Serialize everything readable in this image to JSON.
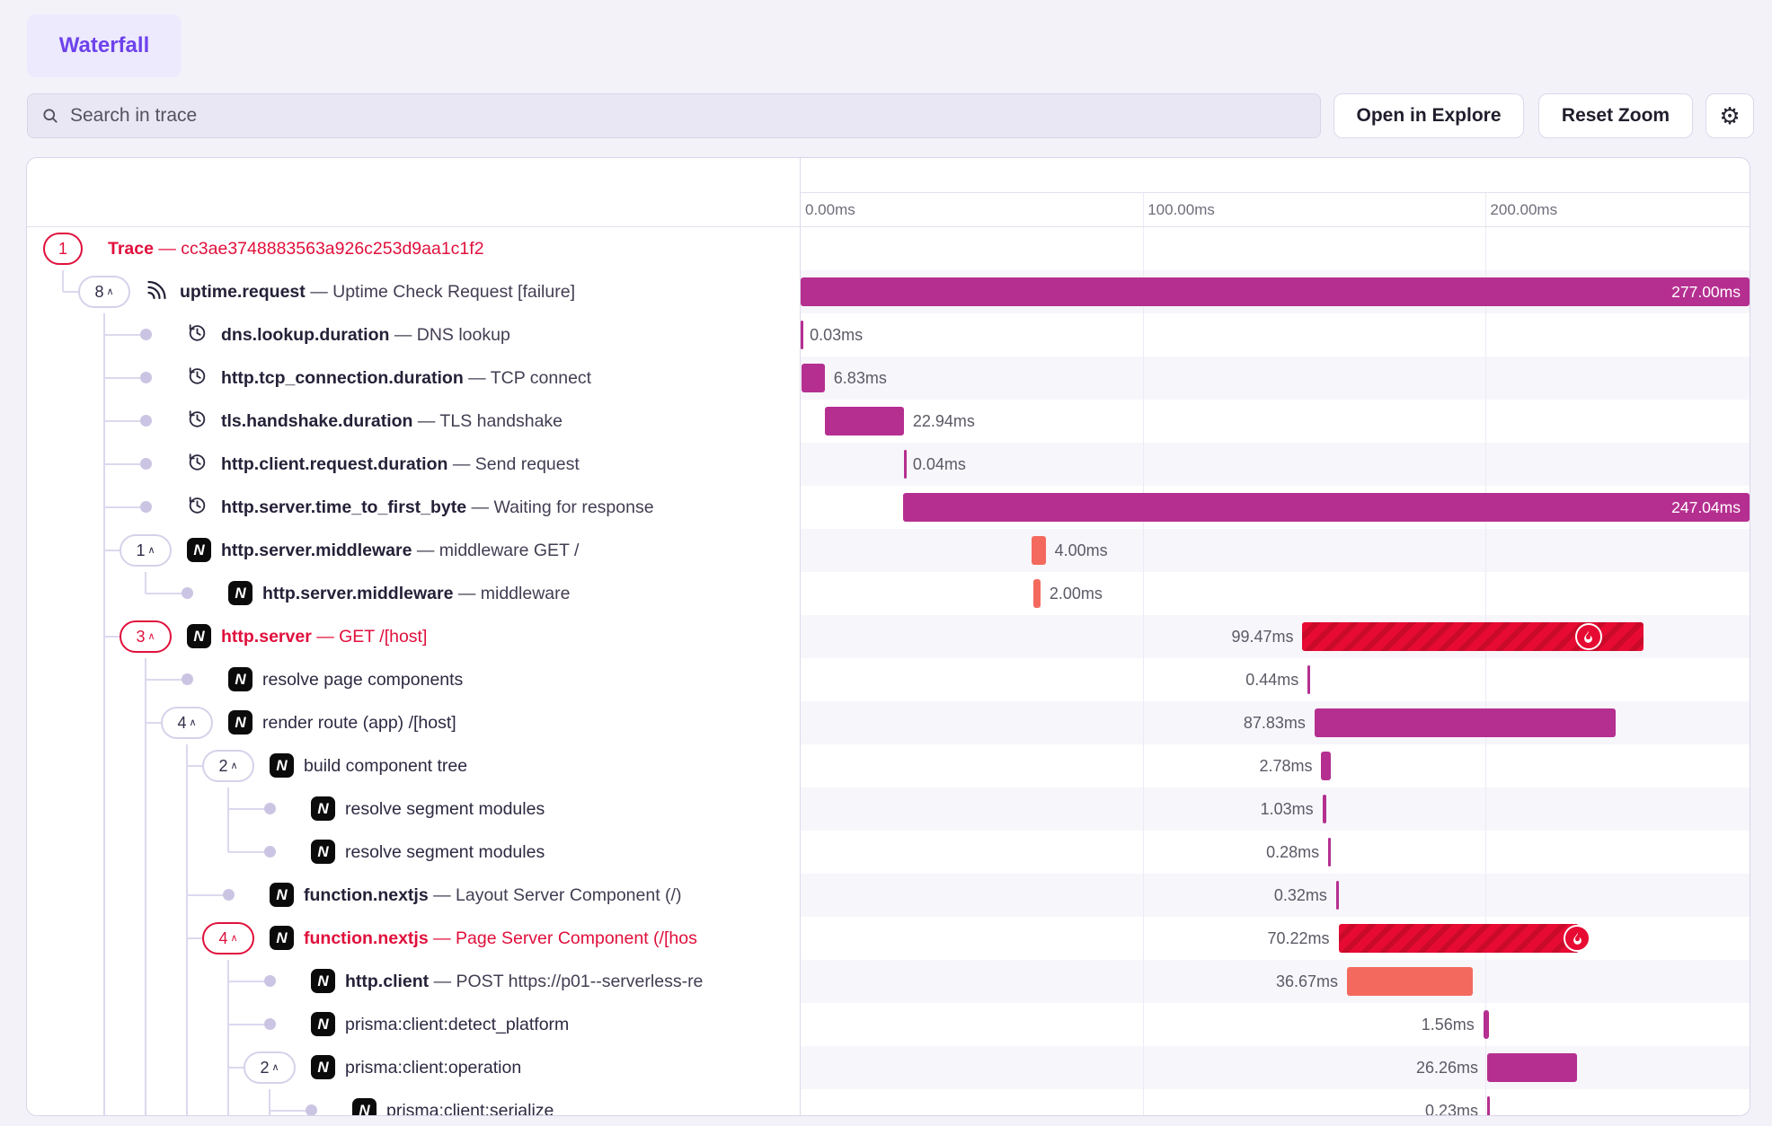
{
  "header": {
    "tab": "Waterfall",
    "search_placeholder": "Search in trace",
    "open_in_explore": "Open in Explore",
    "reset_zoom": "Reset Zoom",
    "settings_glyph": "⚙"
  },
  "timeline": {
    "total_ms": 277,
    "ticks": [
      {
        "label": "0.00ms",
        "ms": 0
      },
      {
        "label": "100.00ms",
        "ms": 100
      },
      {
        "label": "200.00ms",
        "ms": 200
      }
    ]
  },
  "colors": {
    "magenta": "#b52f90",
    "salmon": "#f4695e",
    "error_red": "#e70b33",
    "error_stripe": "#c90a2b",
    "accent_red": "#e0103c",
    "accent_purple": "#6e42ec"
  },
  "rows": [
    {
      "depth": 0,
      "pill": {
        "label": "1",
        "chevron": false,
        "red": true
      },
      "icon": null,
      "title": "Trace",
      "desc": "cc3ae3748883563a926c253d9aa1c1f2",
      "red": true,
      "rails": [],
      "elbow": null,
      "elbow_top": false,
      "bar": null
    },
    {
      "depth": 1,
      "pill": {
        "label": "8",
        "chevron": true,
        "red": false
      },
      "icon": "uptime",
      "title": "uptime.request",
      "desc": "Uptime Check Request [failure]",
      "red": false,
      "rails": [],
      "elbow": 0,
      "elbow_top": true,
      "bar": {
        "start": 0,
        "dur": 277,
        "label": "277.00ms",
        "color": "magenta",
        "label_pos": "inside",
        "flame": null
      }
    },
    {
      "depth": 2,
      "pill": null,
      "icon": "clock",
      "title": "dns.lookup.duration",
      "desc": "DNS lookup",
      "red": false,
      "rails": [
        1
      ],
      "elbow": 1,
      "elbow_top": false,
      "bar": {
        "start": 0,
        "dur": 0.03,
        "label": "0.03ms",
        "color": "magenta",
        "label_pos": "right",
        "flame": null
      }
    },
    {
      "depth": 2,
      "pill": null,
      "icon": "clock",
      "title": "http.tcp_connection.duration",
      "desc": "TCP connect",
      "red": false,
      "rails": [
        1
      ],
      "elbow": 1,
      "elbow_top": false,
      "bar": {
        "start": 0.2,
        "dur": 6.83,
        "label": "6.83ms",
        "color": "magenta",
        "label_pos": "right",
        "flame": null
      }
    },
    {
      "depth": 2,
      "pill": null,
      "icon": "clock",
      "title": "tls.handshake.duration",
      "desc": "TLS handshake",
      "red": false,
      "rails": [
        1
      ],
      "elbow": 1,
      "elbow_top": false,
      "bar": {
        "start": 7.2,
        "dur": 22.94,
        "label": "22.94ms",
        "color": "magenta",
        "label_pos": "right",
        "flame": null
      }
    },
    {
      "depth": 2,
      "pill": null,
      "icon": "clock",
      "title": "http.client.request.duration",
      "desc": "Send request",
      "red": false,
      "rails": [
        1
      ],
      "elbow": 1,
      "elbow_top": false,
      "bar": {
        "start": 30.1,
        "dur": 0.04,
        "label": "0.04ms",
        "color": "magenta",
        "label_pos": "right",
        "flame": null
      }
    },
    {
      "depth": 2,
      "pill": null,
      "icon": "clock",
      "title": "http.server.time_to_first_byte",
      "desc": "Waiting for response",
      "red": false,
      "rails": [
        1
      ],
      "elbow": 1,
      "elbow_top": false,
      "bar": {
        "start": 29.96,
        "dur": 247.04,
        "label": "247.04ms",
        "color": "magenta",
        "label_pos": "inside",
        "flame": null
      }
    },
    {
      "depth": 2,
      "pill": {
        "label": "1",
        "chevron": true,
        "red": false
      },
      "icon": "nextjs",
      "title": "http.server.middleware",
      "desc": "middleware GET /",
      "red": false,
      "rails": [
        1
      ],
      "elbow": 1,
      "elbow_top": false,
      "bar": {
        "start": 67.5,
        "dur": 4,
        "label": "4.00ms",
        "color": "salmon",
        "label_pos": "right",
        "flame": null
      }
    },
    {
      "depth": 3,
      "pill": null,
      "icon": "nextjs",
      "title": "http.server.middleware",
      "desc": "middleware",
      "red": false,
      "rails": [
        1
      ],
      "elbow": 2,
      "elbow_top": true,
      "bar": {
        "start": 68,
        "dur": 2,
        "label": "2.00ms",
        "color": "salmon",
        "label_pos": "right",
        "flame": null
      }
    },
    {
      "depth": 2,
      "pill": {
        "label": "3",
        "chevron": true,
        "red": true
      },
      "icon": "nextjs",
      "title": "http.server",
      "desc": "GET /[host]",
      "red": true,
      "rails": [
        1
      ],
      "elbow": 1,
      "elbow_top": false,
      "bar": {
        "start": 146.5,
        "dur": 99.47,
        "label": "99.47ms",
        "color": "red",
        "label_pos": "left",
        "flame": "mid"
      }
    },
    {
      "depth": 3,
      "pill": null,
      "icon": "nextjs",
      "title": "resolve page components",
      "desc": null,
      "red": false,
      "rails": [
        1,
        2
      ],
      "elbow": 2,
      "elbow_top": false,
      "bar": {
        "start": 148,
        "dur": 0.44,
        "label": "0.44ms",
        "color": "magenta",
        "label_pos": "left",
        "flame": null
      }
    },
    {
      "depth": 3,
      "pill": {
        "label": "4",
        "chevron": true,
        "red": false
      },
      "icon": "nextjs",
      "title": "render route (app) /[host]",
      "desc": null,
      "red": false,
      "rails": [
        1,
        2
      ],
      "elbow": 2,
      "elbow_top": false,
      "bar": {
        "start": 150,
        "dur": 87.83,
        "label": "87.83ms",
        "color": "magenta",
        "label_pos": "left",
        "flame": null
      }
    },
    {
      "depth": 4,
      "pill": {
        "label": "2",
        "chevron": true,
        "red": false
      },
      "icon": "nextjs",
      "title": "build component tree",
      "desc": null,
      "red": false,
      "rails": [
        1,
        2,
        3
      ],
      "elbow": 3,
      "elbow_top": false,
      "bar": {
        "start": 152,
        "dur": 2.78,
        "label": "2.78ms",
        "color": "magenta",
        "label_pos": "left",
        "flame": null
      }
    },
    {
      "depth": 5,
      "pill": null,
      "icon": "nextjs",
      "title": "resolve segment modules",
      "desc": null,
      "red": false,
      "rails": [
        1,
        2,
        3,
        4
      ],
      "elbow": 4,
      "elbow_top": false,
      "bar": {
        "start": 152.3,
        "dur": 1.03,
        "label": "1.03ms",
        "color": "magenta",
        "label_pos": "left",
        "flame": null
      }
    },
    {
      "depth": 5,
      "pill": null,
      "icon": "nextjs",
      "title": "resolve segment modules",
      "desc": null,
      "red": false,
      "rails": [
        1,
        2,
        3
      ],
      "elbow": 4,
      "elbow_top": true,
      "bar": {
        "start": 154,
        "dur": 0.28,
        "label": "0.28ms",
        "color": "magenta",
        "label_pos": "left",
        "flame": null
      }
    },
    {
      "depth": 4,
      "pill": null,
      "icon": "nextjs",
      "title": "function.nextjs",
      "desc": "Layout Server Component (/)",
      "red": false,
      "rails": [
        1,
        2,
        3
      ],
      "elbow": 3,
      "elbow_top": false,
      "bar": {
        "start": 156.3,
        "dur": 0.32,
        "label": "0.32ms",
        "color": "magenta",
        "label_pos": "left",
        "flame": null
      }
    },
    {
      "depth": 4,
      "pill": {
        "label": "4",
        "chevron": true,
        "red": true
      },
      "icon": "nextjs",
      "title": "function.nextjs",
      "desc": "Page Server Component (/[hos",
      "red": true,
      "rails": [
        1,
        2,
        3
      ],
      "elbow": 3,
      "elbow_top": false,
      "bar": {
        "start": 157,
        "dur": 70.22,
        "label": "70.22ms",
        "color": "red",
        "label_pos": "left",
        "flame": "end"
      }
    },
    {
      "depth": 5,
      "pill": null,
      "icon": "nextjs",
      "title": "http.client",
      "desc": "POST https://p01--serverless-re",
      "red": false,
      "rails": [
        1,
        2,
        3,
        4
      ],
      "elbow": 4,
      "elbow_top": false,
      "bar": {
        "start": 159.5,
        "dur": 36.67,
        "label": "36.67ms",
        "color": "salmon",
        "label_pos": "left",
        "flame": null
      }
    },
    {
      "depth": 5,
      "pill": null,
      "icon": "nextjs",
      "title": "prisma:client:detect_platform",
      "desc": null,
      "red": false,
      "rails": [
        1,
        2,
        3,
        4
      ],
      "elbow": 4,
      "elbow_top": false,
      "bar": {
        "start": 199.3,
        "dur": 1.56,
        "label": "1.56ms",
        "color": "magenta",
        "label_pos": "left",
        "flame": null
      }
    },
    {
      "depth": 5,
      "pill": {
        "label": "2",
        "chevron": true,
        "red": false
      },
      "icon": "nextjs",
      "title": "prisma:client:operation",
      "desc": null,
      "red": false,
      "rails": [
        1,
        2,
        3,
        4
      ],
      "elbow": 4,
      "elbow_top": false,
      "bar": {
        "start": 200.4,
        "dur": 26.26,
        "label": "26.26ms",
        "color": "magenta",
        "label_pos": "left",
        "flame": null
      }
    },
    {
      "depth": 6,
      "pill": null,
      "icon": "nextjs",
      "title": "prisma:client:serialize",
      "desc": null,
      "red": false,
      "rails": [
        1,
        2,
        3,
        4,
        5
      ],
      "elbow": 5,
      "elbow_top": false,
      "bar": {
        "start": 200.4,
        "dur": 0.23,
        "label": "0.23ms",
        "color": "magenta",
        "label_pos": "left",
        "flame": null
      }
    }
  ]
}
